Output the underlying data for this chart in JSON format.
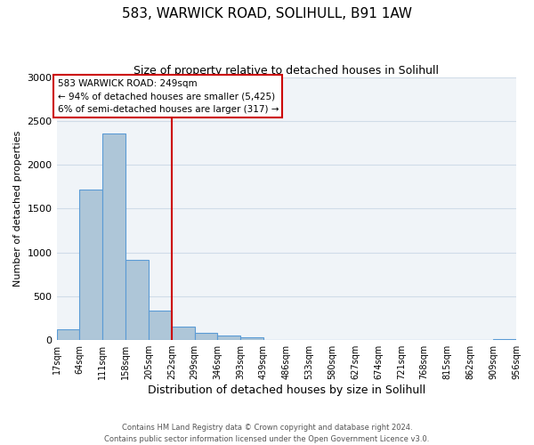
{
  "title": "583, WARWICK ROAD, SOLIHULL, B91 1AW",
  "subtitle": "Size of property relative to detached houses in Solihull",
  "xlabel": "Distribution of detached houses by size in Solihull",
  "ylabel": "Number of detached properties",
  "bar_left_edges": [
    17,
    64,
    111,
    158,
    205,
    252,
    299,
    346,
    393,
    439,
    486,
    533,
    580,
    627,
    674,
    721,
    768,
    815,
    862,
    909
  ],
  "bar_heights": [
    120,
    1720,
    2360,
    910,
    340,
    155,
    85,
    50,
    30,
    0,
    0,
    0,
    0,
    0,
    0,
    0,
    0,
    0,
    0,
    15
  ],
  "bin_width": 47,
  "xlim_left": 17,
  "xlim_right": 956,
  "ylim": [
    0,
    3000
  ],
  "yticks": [
    0,
    500,
    1000,
    1500,
    2000,
    2500,
    3000
  ],
  "xtick_labels": [
    "17sqm",
    "64sqm",
    "111sqm",
    "158sqm",
    "205sqm",
    "252sqm",
    "299sqm",
    "346sqm",
    "393sqm",
    "439sqm",
    "486sqm",
    "533sqm",
    "580sqm",
    "627sqm",
    "674sqm",
    "721sqm",
    "768sqm",
    "815sqm",
    "862sqm",
    "909sqm",
    "956sqm"
  ],
  "xtick_positions": [
    17,
    64,
    111,
    158,
    205,
    252,
    299,
    346,
    393,
    439,
    486,
    533,
    580,
    627,
    674,
    721,
    768,
    815,
    862,
    909,
    956
  ],
  "bar_color": "#aec6d8",
  "bar_edge_color": "#5b9bd5",
  "vline_x": 252,
  "vline_color": "#cc0000",
  "annotation_line1": "583 WARWICK ROAD: 249sqm",
  "annotation_line2": "← 94% of detached houses are smaller (5,425)",
  "annotation_line3": "6% of semi-detached houses are larger (317) →",
  "annotation_box_color": "#cc0000",
  "annotation_text_color": "#000000",
  "footer_line1": "Contains HM Land Registry data © Crown copyright and database right 2024.",
  "footer_line2": "Contains public sector information licensed under the Open Government Licence v3.0.",
  "grid_color": "#d0dce8",
  "background_color": "#f0f4f8"
}
